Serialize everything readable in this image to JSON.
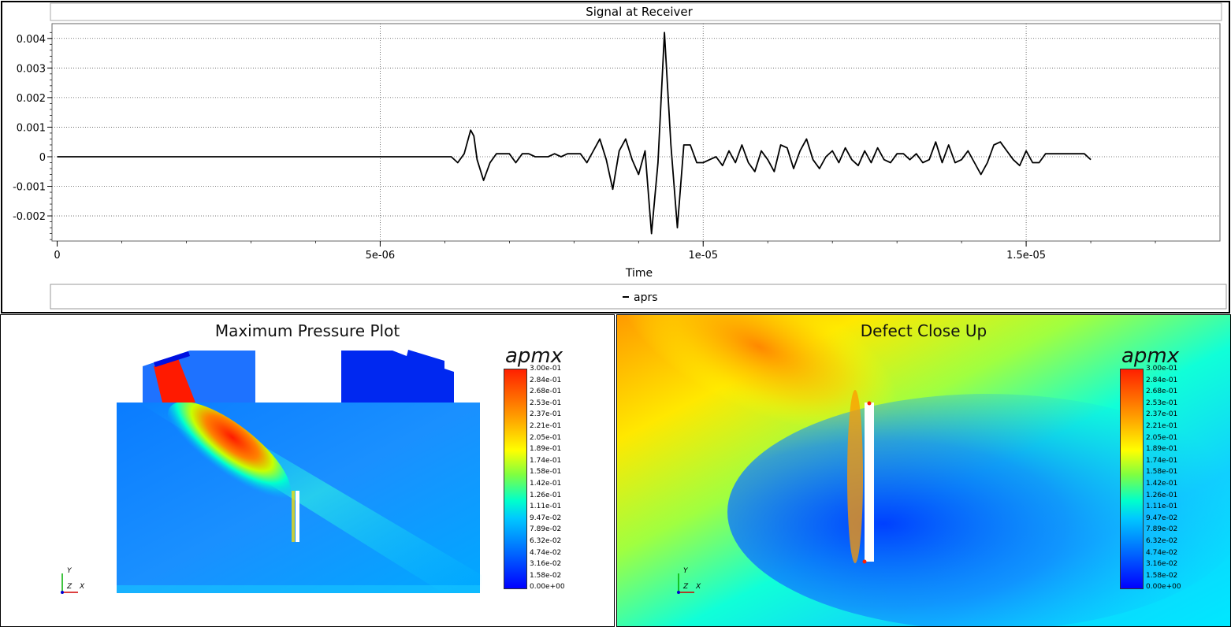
{
  "chart_data": {
    "type": "line",
    "title": "Signal at Receiver",
    "xlabel": "Time",
    "ylabel": "",
    "xlim": [
      -8e-08,
      1.8e-05
    ],
    "ylim": [
      -0.00285,
      0.0045
    ],
    "x_ticks": [
      "0",
      "5e-06",
      "1e-05",
      "1.5e-05"
    ],
    "x_tick_values": [
      0,
      5e-06,
      1e-05,
      1.5e-05
    ],
    "y_ticks": [
      "0.004",
      "0.003",
      "0.002",
      "0.001",
      "0",
      "-0.001",
      "-0.002"
    ],
    "y_tick_values": [
      0.004,
      0.003,
      0.002,
      0.001,
      0,
      -0.001,
      -0.002
    ],
    "grid": true,
    "legend": "bottom",
    "series": [
      {
        "name": "aprs",
        "color": "#000000",
        "x": [
          0,
          6.1e-06,
          6.2e-06,
          6.3e-06,
          6.4e-06,
          6.45e-06,
          6.5e-06,
          6.6e-06,
          6.7e-06,
          6.8e-06,
          6.9e-06,
          7e-06,
          7.1e-06,
          7.2e-06,
          7.3e-06,
          7.4e-06,
          7.5e-06,
          7.6e-06,
          7.7e-06,
          7.8e-06,
          7.9e-06,
          8e-06,
          8.1e-06,
          8.2e-06,
          8.3e-06,
          8.4e-06,
          8.5e-06,
          8.6e-06,
          8.7e-06,
          8.8e-06,
          8.9e-06,
          9e-06,
          9.1e-06,
          9.2e-06,
          9.3e-06,
          9.4e-06,
          9.5e-06,
          9.6e-06,
          9.7e-06,
          9.8e-06,
          9.9e-06,
          1e-05,
          1.01e-05,
          1.02e-05,
          1.03e-05,
          1.04e-05,
          1.05e-05,
          1.06e-05,
          1.07e-05,
          1.08e-05,
          1.09e-05,
          1.1e-05,
          1.11e-05,
          1.12e-05,
          1.13e-05,
          1.14e-05,
          1.15e-05,
          1.16e-05,
          1.17e-05,
          1.18e-05,
          1.19e-05,
          1.2e-05,
          1.21e-05,
          1.22e-05,
          1.23e-05,
          1.24e-05,
          1.25e-05,
          1.26e-05,
          1.27e-05,
          1.28e-05,
          1.29e-05,
          1.3e-05,
          1.31e-05,
          1.32e-05,
          1.33e-05,
          1.34e-05,
          1.35e-05,
          1.36e-05,
          1.37e-05,
          1.38e-05,
          1.39e-05,
          1.4e-05,
          1.41e-05,
          1.42e-05,
          1.43e-05,
          1.44e-05,
          1.45e-05,
          1.46e-05,
          1.47e-05,
          1.48e-05,
          1.49e-05,
          1.5e-05,
          1.51e-05,
          1.52e-05,
          1.53e-05,
          1.54e-05,
          1.55e-05,
          1.56e-05,
          1.57e-05,
          1.58e-05,
          1.59e-05,
          1.6e-05
        ],
        "y": [
          0,
          0,
          -0.0002,
          0.0001,
          0.0009,
          0.0007,
          -0.0001,
          -0.0008,
          -0.0002,
          0.0001,
          0.0001,
          0.0001,
          -0.0002,
          0.0001,
          0.0001,
          0,
          0,
          0,
          0.0001,
          0,
          0.0001,
          0.0001,
          0.0001,
          -0.0002,
          0.0002,
          0.0006,
          -0.0001,
          -0.0011,
          0.0002,
          0.0006,
          -0.0001,
          -0.0006,
          0.0002,
          -0.0026,
          -0.0002,
          0.0042,
          0.0004,
          -0.0024,
          0.0004,
          0.0004,
          -0.0002,
          -0.0002,
          -0.0001,
          0,
          -0.0003,
          0.0002,
          -0.0002,
          0.0004,
          -0.0002,
          -0.0005,
          0.0002,
          -0.0001,
          -0.0005,
          0.0004,
          0.0003,
          -0.0004,
          0.0002,
          0.0006,
          -0.0001,
          -0.0004,
          0,
          0.0002,
          -0.0002,
          0.0003,
          -0.0001,
          -0.0003,
          0.0002,
          -0.0002,
          0.0003,
          -0.0001,
          -0.0002,
          0.0001,
          0.0001,
          -0.0001,
          0.0001,
          -0.0002,
          -0.0001,
          0.0005,
          -0.0002,
          0.0004,
          -0.0002,
          -0.0001,
          0.0002,
          -0.0002,
          -0.0006,
          -0.0002,
          0.0004,
          0.0005,
          0.0002,
          -0.0001,
          -0.0003,
          0.0002,
          -0.0002,
          -0.0002,
          0.0001,
          0.0001,
          0.0001,
          0.0001,
          0.0001,
          0.0001,
          0.0001,
          -0.0001
        ]
      }
    ]
  },
  "left_panel": {
    "title": "Maximum Pressure Plot",
    "legend_title": "apmx",
    "legend_labels": [
      "3.00e-01",
      "2.84e-01",
      "2.68e-01",
      "2.53e-01",
      "2.37e-01",
      "2.21e-01",
      "2.05e-01",
      "1.89e-01",
      "1.74e-01",
      "1.58e-01",
      "1.42e-01",
      "1.26e-01",
      "1.11e-01",
      "9.47e-02",
      "7.89e-02",
      "6.32e-02",
      "4.74e-02",
      "3.16e-02",
      "1.58e-02",
      "0.00e+00"
    ],
    "axes": {
      "y": "Y",
      "z": "Z",
      "x": "X"
    }
  },
  "right_panel": {
    "title": "Defect Close Up",
    "legend_title": "apmx",
    "legend_labels": [
      "3.00e-01",
      "2.84e-01",
      "2.68e-01",
      "2.53e-01",
      "2.37e-01",
      "2.21e-01",
      "2.05e-01",
      "1.89e-01",
      "1.74e-01",
      "1.58e-01",
      "1.42e-01",
      "1.26e-01",
      "1.11e-01",
      "9.47e-02",
      "7.89e-02",
      "6.32e-02",
      "4.74e-02",
      "3.16e-02",
      "1.58e-02",
      "0.00e+00"
    ],
    "axes": {
      "y": "Y",
      "z": "Z",
      "x": "X"
    }
  }
}
